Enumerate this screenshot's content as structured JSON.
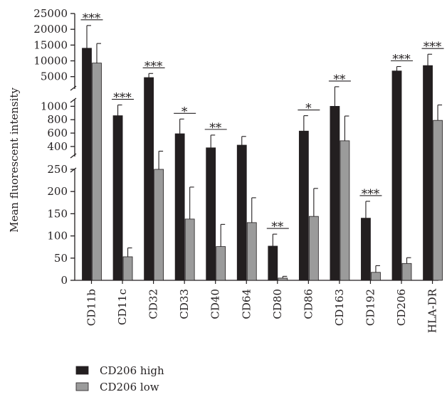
{
  "chart_data": {
    "type": "bar",
    "ylabel": "Mean fluorescent intensity",
    "axis_break": true,
    "categories": [
      "CD11b",
      "CD11c",
      "CD32",
      "CD33",
      "CD40",
      "CD64",
      "CD80",
      "CD86",
      "CD163",
      "CD192",
      "CD206",
      "HLA-DR"
    ],
    "series": [
      {
        "name": "CD206 high",
        "color": "#231f20",
        "values": [
          14000,
          860,
          4700,
          590,
          380,
          420,
          77,
          630,
          1000,
          140,
          6800,
          8500
        ],
        "errors": [
          7200,
          160,
          1300,
          220,
          190,
          130,
          27,
          230,
          800,
          38,
          1400,
          3600
        ]
      },
      {
        "name": "CD206 low",
        "color": "#9b9b9b",
        "values": [
          9300,
          53,
          250,
          138,
          76,
          130,
          5,
          144,
          485,
          18,
          38,
          790
        ],
        "errors": [
          6200,
          20,
          80,
          72,
          50,
          56,
          4,
          63,
          370,
          15,
          13,
          230
        ]
      }
    ],
    "significance": [
      "***",
      "***",
      "***",
      "*",
      "**",
      "",
      "**",
      "*",
      "**",
      "***",
      "***",
      "***"
    ],
    "segments": [
      {
        "ylim": [
          0,
          250
        ],
        "ticks": [
          0,
          50,
          100,
          150,
          200,
          250
        ]
      },
      {
        "ylim": [
          250,
          1100
        ],
        "ticks": [
          400,
          600,
          800,
          1000
        ]
      },
      {
        "ylim": [
          1100,
          25000
        ],
        "ticks": [
          5000,
          10000,
          15000,
          20000,
          25000
        ]
      }
    ],
    "legend": {
      "position": "bottom-left"
    },
    "grid": false
  }
}
